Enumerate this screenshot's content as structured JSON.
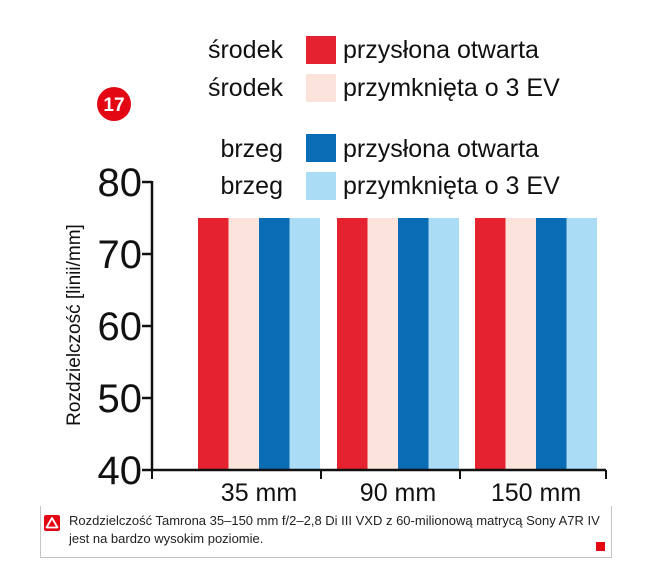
{
  "badge": {
    "number": "17"
  },
  "colors": {
    "center_open": "#e52330",
    "center_stopped": "#fce4dc",
    "edge_open": "#0a6cb4",
    "edge_stopped": "#aadcf6",
    "badge": "#e30613",
    "axis": "#111111"
  },
  "legend": [
    {
      "group": "środek",
      "label": "przysłona otwarta",
      "color": "#e52330"
    },
    {
      "group": "środek",
      "label": "przymknięta o 3 EV",
      "color": "#fce4dc"
    },
    {
      "group": "brzeg",
      "label": "przysłona otwarta",
      "color": "#0a6cb4"
    },
    {
      "group": "brzeg",
      "label": "przymknięta o 3 EV",
      "color": "#aadcf6"
    }
  ],
  "chart_data": {
    "type": "bar",
    "categories": [
      "35 mm",
      "90 mm",
      "150 mm"
    ],
    "series": [
      {
        "name": "środek przysłona otwarta",
        "values": [
          75,
          75,
          75
        ]
      },
      {
        "name": "środek przymknięta o 3 EV",
        "values": [
          75,
          75,
          75
        ]
      },
      {
        "name": "brzeg przysłona otwarta",
        "values": [
          75,
          75,
          75
        ]
      },
      {
        "name": "brzeg przymknięta o 3 EV",
        "values": [
          75,
          75,
          75
        ]
      }
    ],
    "ylabel": "Rozdzielczość  [linii/mm]",
    "ylim": [
      40,
      80
    ],
    "yticks": [
      40,
      50,
      60,
      70,
      80
    ],
    "grid": false,
    "legend_position": "top"
  },
  "caption": {
    "icon": "warning-triangle-icon",
    "text": "Rozdzielczość Tamrona 35–150 mm f/2–2,8 Di III VXD z 60-milionową matrycą Sony A7R IV jest na bardzo wysokim poziomie."
  }
}
